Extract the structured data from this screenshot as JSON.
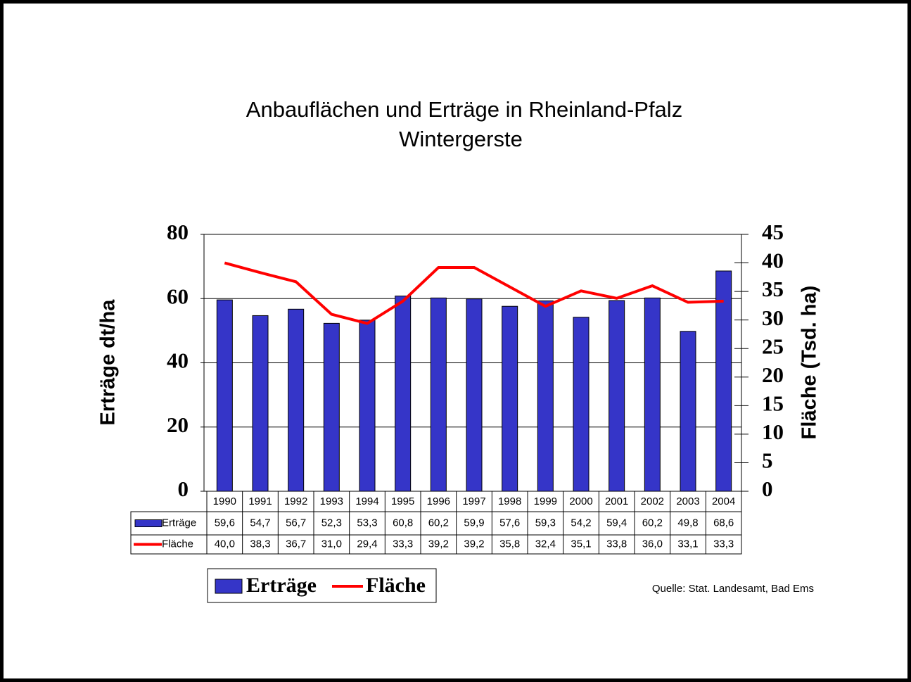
{
  "chart_data": {
    "type": "bar",
    "title": "Anbauflächen und Erträge in Rheinland-Pfalz",
    "subtitle": "Wintergerste",
    "y_label": "Erträge dt/ha",
    "y2_label": "Fläche (Tsd. ha)",
    "source": "Quelle: Stat. Landesamt, Bad Ems",
    "categories": [
      "1990",
      "1991",
      "1992",
      "1993",
      "1994",
      "1995",
      "1996",
      "1997",
      "1998",
      "1999",
      "2000",
      "2001",
      "2002",
      "2003",
      "2004"
    ],
    "series": [
      {
        "name": "Erträge",
        "type": "bar",
        "color": "#3535c8",
        "values": [
          59.6,
          54.7,
          56.7,
          52.3,
          53.3,
          60.8,
          60.2,
          59.9,
          57.6,
          59.3,
          54.2,
          59.4,
          60.2,
          49.8,
          68.6
        ],
        "value_labels": [
          "59,6",
          "54,7",
          "56,7",
          "52,3",
          "53,3",
          "60,8",
          "60,2",
          "59,9",
          "57,6",
          "59,3",
          "54,2",
          "59,4",
          "60,2",
          "49,8",
          "68,6"
        ]
      },
      {
        "name": "Fläche",
        "type": "line",
        "axis": "y2",
        "color": "#ff0000",
        "values": [
          40.0,
          38.3,
          36.7,
          31.0,
          29.4,
          33.3,
          39.2,
          39.2,
          35.8,
          32.4,
          35.1,
          33.8,
          36.0,
          33.1,
          33.3
        ],
        "value_labels": [
          "40,0",
          "38,3",
          "36,7",
          "31,0",
          "29,4",
          "33,3",
          "39,2",
          "39,2",
          "35,8",
          "32,4",
          "35,1",
          "33,8",
          "36,0",
          "33,1",
          "33,3"
        ]
      }
    ],
    "ylim": [
      0,
      80
    ],
    "yticks": [
      0,
      20,
      40,
      60,
      80
    ],
    "y2lim": [
      0,
      45
    ],
    "y2ticks": [
      0,
      5,
      10,
      15,
      20,
      25,
      30,
      35,
      40,
      45
    ],
    "grid": true
  }
}
